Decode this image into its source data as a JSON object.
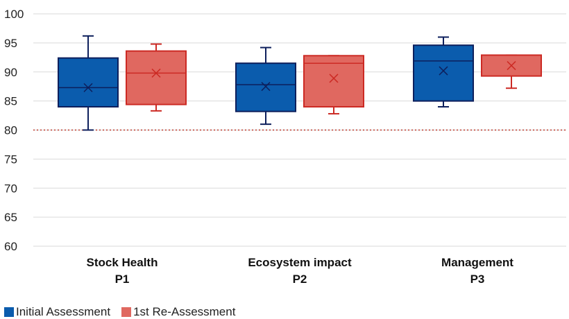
{
  "chart_data": {
    "type": "box",
    "title": "",
    "xlabel": "",
    "ylabel": "",
    "ylim": [
      60,
      100
    ],
    "yticks": [
      60,
      65,
      70,
      75,
      80,
      85,
      90,
      95,
      100
    ],
    "grid": true,
    "reference_line": {
      "value": 80,
      "style": "dotted",
      "color": "#c0392b"
    },
    "legend_position": "bottom-left",
    "categories": [
      {
        "name": "Stock Health",
        "code": "P1"
      },
      {
        "name": "Ecosystem impact",
        "code": "P2"
      },
      {
        "name": "Management",
        "code": "P3"
      }
    ],
    "series": [
      {
        "name": "Initial Assessment",
        "fill": "#0b5cad",
        "stroke": "#0d1f5c",
        "boxes": [
          {
            "min": 80,
            "q1": 84,
            "median": 87.3,
            "q3": 92.4,
            "max": 96.2,
            "mean": 87.3
          },
          {
            "min": 81,
            "q1": 83.2,
            "median": 87.8,
            "q3": 91.5,
            "max": 94.2,
            "mean": 87.5
          },
          {
            "min": 84,
            "q1": 85,
            "median": 91.9,
            "q3": 94.6,
            "max": 96,
            "mean": 90.2
          }
        ]
      },
      {
        "name": "1st Re-Assessment",
        "fill": "#e06860",
        "stroke": "#cc2a24",
        "boxes": [
          {
            "min": 83.3,
            "q1": 84.4,
            "median": 89.8,
            "q3": 93.6,
            "max": 94.8,
            "mean": 89.8
          },
          {
            "min": 82.8,
            "q1": 84,
            "median": 91.5,
            "q3": 92.8,
            "max": 92.8,
            "mean": 88.9
          },
          {
            "min": 87.2,
            "q1": 89.3,
            "median": 92.9,
            "q3": 92.9,
            "max": 92.9,
            "mean": 91.1
          }
        ]
      }
    ]
  }
}
